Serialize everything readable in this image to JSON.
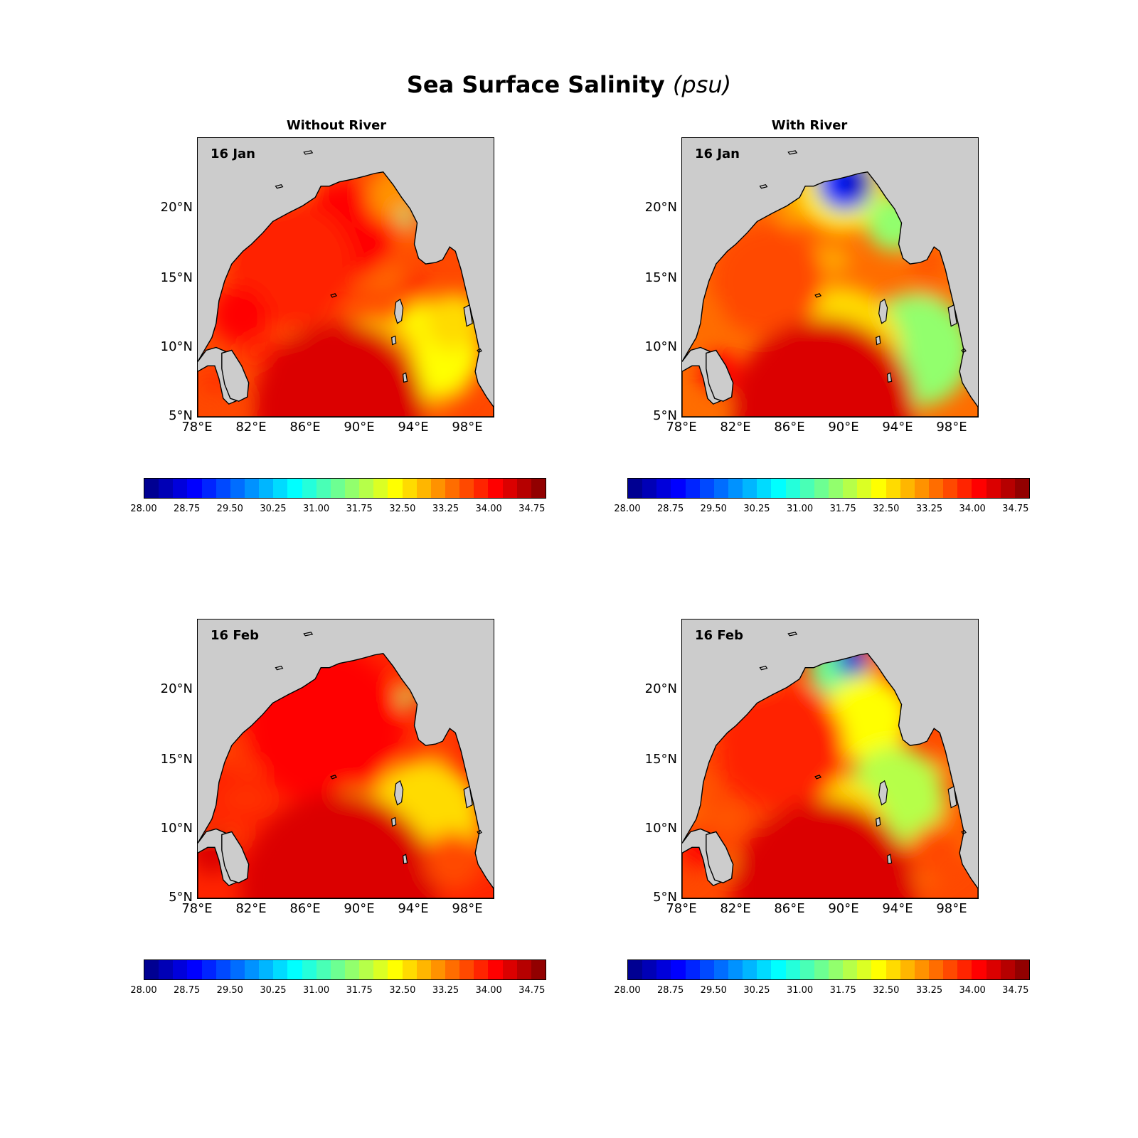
{
  "figure": {
    "title": "Sea Surface Salinity",
    "unit": "(psu)"
  },
  "columns": [
    {
      "title": "Without River"
    },
    {
      "title": "With River"
    }
  ],
  "panels": [
    {
      "date": "16 Jan",
      "column": "Without River"
    },
    {
      "date": "16 Jan",
      "column": "With River"
    },
    {
      "date": "16 Feb",
      "column": "Without River"
    },
    {
      "date": "16 Feb",
      "column": "With River"
    }
  ],
  "axes": {
    "lat_ticks": [
      "20°N",
      "15°N",
      "10°N",
      "5°N"
    ],
    "lon_ticks": [
      "78°E",
      "82°E",
      "86°E",
      "90°E",
      "94°E",
      "98°E"
    ]
  },
  "colorbar": {
    "min": 28.0,
    "max": 35.0,
    "step": 0.25,
    "tick_labels": [
      "28.00",
      "28.75",
      "29.50",
      "30.25",
      "31.00",
      "31.75",
      "32.50",
      "33.25",
      "34.00",
      "34.75"
    ],
    "colormap": "jet"
  },
  "colors": {
    "land": "#cccccc",
    "coastline": "#000000"
  }
}
